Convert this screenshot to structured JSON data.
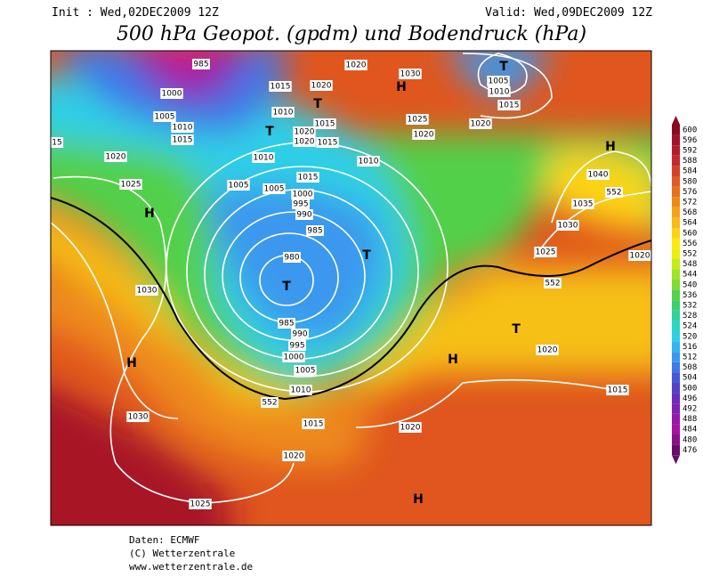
{
  "header": {
    "init": "Init : Wed,02DEC2009 12Z",
    "valid": "Valid: Wed,09DEC2009 12Z",
    "title": "500 hPa Geopot. (gpdm) und Bodendruck (hPa)"
  },
  "legend": {
    "values": [
      600,
      596,
      592,
      588,
      584,
      580,
      576,
      572,
      568,
      564,
      560,
      556,
      552,
      548,
      544,
      540,
      536,
      532,
      528,
      524,
      520,
      516,
      512,
      508,
      504,
      500,
      496,
      492,
      488,
      484,
      480,
      476
    ],
    "colors": [
      "#8b0a1e",
      "#a3102a",
      "#b51a2b",
      "#c8282a",
      "#d6402a",
      "#e05a22",
      "#e8701c",
      "#ef8818",
      "#f5a21a",
      "#f8bb18",
      "#fbd414",
      "#fde90e",
      "#e8f00c",
      "#c6ec16",
      "#9fe524",
      "#7ddd32",
      "#55d24a",
      "#3ccf6a",
      "#2fd39a",
      "#2ad6c6",
      "#2fcfe6",
      "#33b6ef",
      "#3a98ee",
      "#3f78e8",
      "#4558d8",
      "#5540c8",
      "#6a2cbc",
      "#8020b4",
      "#9618ac",
      "#a812a0",
      "#8a1288",
      "#6a0c6a"
    ]
  },
  "map": {
    "labels": [
      "985",
      "1000",
      "1005",
      "1010",
      "1015",
      "1020",
      "1025",
      "H",
      "1030",
      "H",
      "1030",
      "1025",
      "1020",
      "1015",
      "1010",
      "552",
      "1005",
      "1000",
      "995",
      "990",
      "985",
      "T",
      "980",
      "985",
      "990",
      "995",
      "1000",
      "1005",
      "1005",
      "1010",
      "1015",
      "1010",
      "1015",
      "1020",
      "1020",
      "1015",
      "1010",
      "T",
      "T",
      "1015",
      "1020",
      "1020",
      "1030",
      "H",
      "T",
      "1025",
      "1020",
      "1020",
      "T",
      "1005",
      "1010",
      "1015",
      "H",
      "1040",
      "552",
      "1035",
      "1030",
      "1025",
      "552",
      "1020",
      "T",
      "1020",
      "1015",
      "1020",
      "H",
      "H",
      "15"
    ]
  },
  "footer": {
    "source": "Daten: ECMWF",
    "copyright": "(C) Wetterzentrale",
    "url": "www.wetterzentrale.de"
  }
}
